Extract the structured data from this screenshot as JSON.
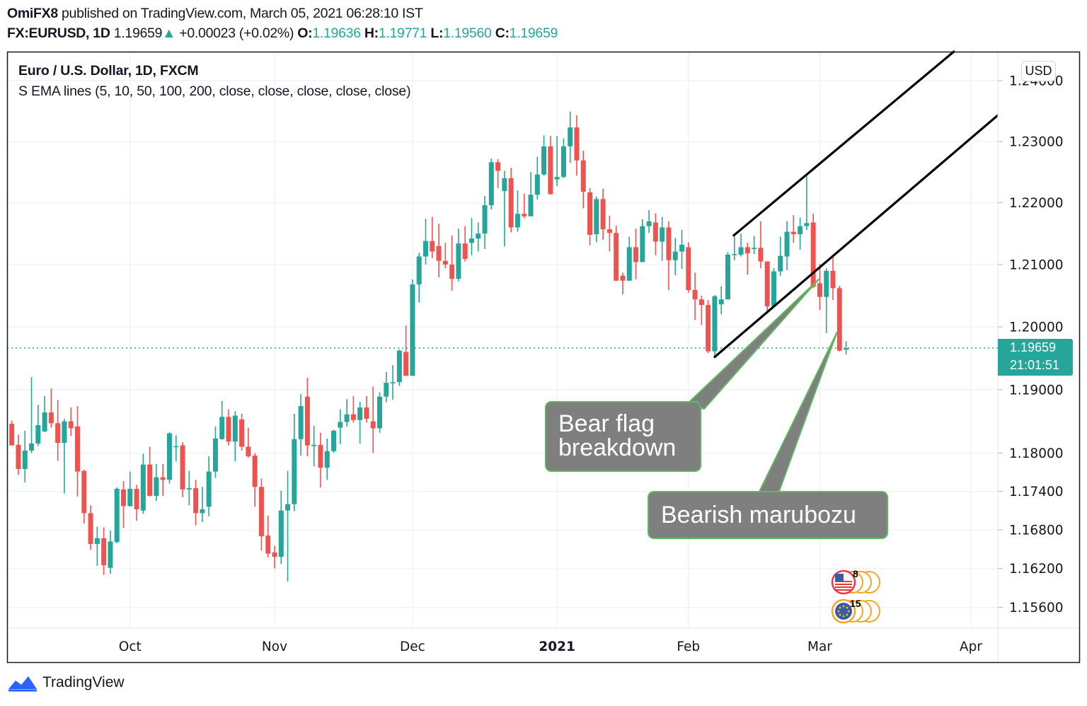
{
  "header": {
    "publisher": "OmiFX8",
    "published_text": "published on TradingView.com, March 05, 2021 06:28:10 IST",
    "symbol": "FX:EURUSD, 1D",
    "last": "1.19659",
    "change": "+0.00023 (+0.02%)",
    "o_label": "O:",
    "o": "1.19636",
    "h_label": "H:",
    "h": "1.19771",
    "l_label": "L:",
    "l": "1.19560",
    "c_label": "C:",
    "c": "1.19659"
  },
  "legend": {
    "title": "Euro / U.S. Dollar, 1D, FXCM",
    "indicator": "S EMA lines (5, 10, 50, 100, 200, close, close, close, close, close)"
  },
  "currency_button": "USD",
  "footer": {
    "brand": "TradingView"
  },
  "chart_data": {
    "type": "candlestick",
    "title": "Euro / U.S. Dollar, 1D, FXCM",
    "y_scale": "log",
    "ylim": [
      1.1528,
      1.2448
    ],
    "xlim": [
      -0.72,
      150.1
    ],
    "y_ticks": [
      1.24,
      1.23,
      1.22,
      1.21,
      1.2,
      1.19,
      1.18,
      1.174,
      1.168,
      1.162,
      1.156
    ],
    "y_tick_labels": [
      "1.24000",
      "1.23000",
      "1.22000",
      "1.21000",
      "1.20000",
      "1.19000",
      "1.18000",
      "1.17400",
      "1.16800",
      "1.16200",
      "1.15600"
    ],
    "x_ticks": [
      {
        "label": "Oct",
        "bar": 18,
        "bold": false
      },
      {
        "label": "Nov",
        "bar": 40,
        "bold": false
      },
      {
        "label": "Dec",
        "bar": 61,
        "bold": false
      },
      {
        "label": "2021",
        "bar": 83,
        "bold": true
      },
      {
        "label": "Feb",
        "bar": 103,
        "bold": false
      },
      {
        "label": "Mar",
        "bar": 123,
        "bold": false
      },
      {
        "label": "Apr",
        "bar": 146,
        "bold": false
      }
    ],
    "candles_format": [
      "open",
      "high",
      "low",
      "close"
    ],
    "candles": [
      [
        1.1846,
        1.1851,
        1.1812,
        1.1812
      ],
      [
        1.1813,
        1.1829,
        1.1766,
        1.1775
      ],
      [
        1.1775,
        1.1835,
        1.1754,
        1.1804
      ],
      [
        1.1804,
        1.192,
        1.18,
        1.1815
      ],
      [
        1.1815,
        1.1876,
        1.1811,
        1.1844
      ],
      [
        1.1834,
        1.189,
        1.1833,
        1.1864
      ],
      [
        1.1864,
        1.1902,
        1.184,
        1.1847
      ],
      [
        1.1847,
        1.1884,
        1.1788,
        1.1816
      ],
      [
        1.1816,
        1.1854,
        1.1737,
        1.185
      ],
      [
        1.185,
        1.1872,
        1.1827,
        1.1839
      ],
      [
        1.1842,
        1.1874,
        1.1732,
        1.1771
      ],
      [
        1.1772,
        1.1774,
        1.169,
        1.1706
      ],
      [
        1.1706,
        1.1718,
        1.1649,
        1.1658
      ],
      [
        1.1658,
        1.1685,
        1.1624,
        1.1667
      ],
      [
        1.1667,
        1.1684,
        1.161,
        1.1625
      ],
      [
        1.1621,
        1.1679,
        1.1612,
        1.1662
      ],
      [
        1.1661,
        1.1746,
        1.1659,
        1.1744
      ],
      [
        1.1743,
        1.1756,
        1.1683,
        1.1717
      ],
      [
        1.1717,
        1.1771,
        1.1716,
        1.1744
      ],
      [
        1.1744,
        1.175,
        1.1694,
        1.1712
      ],
      [
        1.171,
        1.1799,
        1.1705,
        1.1782
      ],
      [
        1.1782,
        1.181,
        1.1732,
        1.1733
      ],
      [
        1.1733,
        1.1783,
        1.1725,
        1.1762
      ],
      [
        1.1762,
        1.1783,
        1.1733,
        1.1758
      ],
      [
        1.1758,
        1.1833,
        1.1752,
        1.1831
      ],
      [
        1.181,
        1.1828,
        1.1787,
        1.1811
      ],
      [
        1.1812,
        1.1817,
        1.1731,
        1.1743
      ],
      [
        1.1743,
        1.1772,
        1.1718,
        1.1745
      ],
      [
        1.1745,
        1.1758,
        1.1687,
        1.1706
      ],
      [
        1.1706,
        1.1747,
        1.1692,
        1.1712
      ],
      [
        1.1716,
        1.1795,
        1.1701,
        1.1771
      ],
      [
        1.1771,
        1.1842,
        1.1761,
        1.1823
      ],
      [
        1.1822,
        1.1882,
        1.1821,
        1.1857
      ],
      [
        1.1857,
        1.1869,
        1.1812,
        1.1818
      ],
      [
        1.1818,
        1.1866,
        1.1787,
        1.1859
      ],
      [
        1.1853,
        1.1862,
        1.1804,
        1.181
      ],
      [
        1.181,
        1.184,
        1.1793,
        1.1795
      ],
      [
        1.1796,
        1.18,
        1.1716,
        1.1747
      ],
      [
        1.1747,
        1.176,
        1.1648,
        1.167
      ],
      [
        1.1671,
        1.1702,
        1.1637,
        1.1643
      ],
      [
        1.1645,
        1.1655,
        1.162,
        1.1638
      ],
      [
        1.1638,
        1.1741,
        1.1627,
        1.171
      ],
      [
        1.171,
        1.1772,
        1.16,
        1.172
      ],
      [
        1.172,
        1.1862,
        1.1709,
        1.1822
      ],
      [
        1.1822,
        1.1893,
        1.1796,
        1.1874
      ],
      [
        1.1889,
        1.1919,
        1.1795,
        1.1812
      ],
      [
        1.1811,
        1.1843,
        1.1779,
        1.1813
      ],
      [
        1.1813,
        1.1832,
        1.1746,
        1.1777
      ],
      [
        1.1777,
        1.1823,
        1.1758,
        1.1803
      ],
      [
        1.1803,
        1.1837,
        1.18,
        1.1835
      ],
      [
        1.184,
        1.1869,
        1.1814,
        1.1849
      ],
      [
        1.1849,
        1.1885,
        1.1842,
        1.1861
      ],
      [
        1.1861,
        1.189,
        1.1848,
        1.1852
      ],
      [
        1.1852,
        1.1881,
        1.1815,
        1.1872
      ],
      [
        1.1872,
        1.189,
        1.1848,
        1.1854
      ],
      [
        1.185,
        1.1905,
        1.18,
        1.1839
      ],
      [
        1.1839,
        1.1896,
        1.1832,
        1.1889
      ],
      [
        1.1889,
        1.1928,
        1.188,
        1.1911
      ],
      [
        1.1911,
        1.1939,
        1.1884,
        1.1912
      ],
      [
        1.1912,
        1.1964,
        1.1906,
        1.1962
      ],
      [
        1.196,
        1.2002,
        1.1922,
        1.1922
      ],
      [
        1.1922,
        1.2076,
        1.1922,
        1.2068
      ],
      [
        1.2068,
        1.2119,
        1.2039,
        1.2113
      ],
      [
        1.2113,
        1.2174,
        1.21,
        1.2138
      ],
      [
        1.2138,
        1.2177,
        1.211,
        1.2121
      ],
      [
        1.213,
        1.2166,
        1.2079,
        1.2106
      ],
      [
        1.2106,
        1.2135,
        1.2094,
        1.21
      ],
      [
        1.21,
        1.2147,
        1.2058,
        1.2077
      ],
      [
        1.2077,
        1.2158,
        1.2073,
        1.2134
      ],
      [
        1.2134,
        1.2162,
        1.2105,
        1.2109
      ],
      [
        1.2135,
        1.2175,
        1.2115,
        1.2142
      ],
      [
        1.2142,
        1.2168,
        1.2121,
        1.215
      ],
      [
        1.215,
        1.2211,
        1.2125,
        1.2196
      ],
      [
        1.2196,
        1.2272,
        1.2189,
        1.2266
      ],
      [
        1.2266,
        1.2271,
        1.2224,
        1.2252
      ],
      [
        1.2219,
        1.2252,
        1.2129,
        1.224
      ],
      [
        1.224,
        1.2257,
        1.2152,
        1.216
      ],
      [
        1.216,
        1.222,
        1.2153,
        1.2182
      ],
      [
        1.2182,
        1.2215,
        1.2175,
        1.2178
      ],
      [
        1.2178,
        1.225,
        1.2178,
        1.2213
      ],
      [
        1.2213,
        1.2275,
        1.2205,
        1.2246
      ],
      [
        1.2246,
        1.231,
        1.2244,
        1.2292
      ],
      [
        1.2292,
        1.2309,
        1.2213,
        1.2214
      ],
      [
        1.2238,
        1.2309,
        1.2227,
        1.2242
      ],
      [
        1.2242,
        1.2305,
        1.224,
        1.2292
      ],
      [
        1.2292,
        1.2349,
        1.2265,
        1.2323
      ],
      [
        1.2323,
        1.2343,
        1.2244,
        1.2269
      ],
      [
        1.2269,
        1.2285,
        1.2191,
        1.2218
      ],
      [
        1.2217,
        1.2224,
        1.2131,
        1.2148
      ],
      [
        1.2149,
        1.221,
        1.2136,
        1.2206
      ],
      [
        1.2206,
        1.2223,
        1.214,
        1.2157
      ],
      [
        1.2157,
        1.2179,
        1.2121,
        1.2151
      ],
      [
        1.2151,
        1.2163,
        1.2074,
        1.2074
      ],
      [
        1.2082,
        1.2087,
        1.2052,
        1.2074
      ],
      [
        1.2074,
        1.2145,
        1.2074,
        1.2128
      ],
      [
        1.2128,
        1.2158,
        1.2076,
        1.2104
      ],
      [
        1.2104,
        1.2173,
        1.2104,
        1.2162
      ],
      [
        1.2162,
        1.2188,
        1.2151,
        1.217
      ],
      [
        1.2168,
        1.2183,
        1.2115,
        1.2137
      ],
      [
        1.2137,
        1.2177,
        1.2106,
        1.216
      ],
      [
        1.216,
        1.217,
        1.2059,
        1.2107
      ],
      [
        1.2107,
        1.2143,
        1.2083,
        1.2121
      ],
      [
        1.2121,
        1.2156,
        1.2093,
        1.2132
      ],
      [
        1.2128,
        1.2136,
        1.2055,
        1.2059
      ],
      [
        1.2059,
        1.2087,
        1.2011,
        1.2044
      ],
      [
        1.2044,
        1.205,
        1.2003,
        1.2035
      ],
      [
        1.2035,
        1.2043,
        1.1958,
        1.1961
      ],
      [
        1.1961,
        1.2051,
        1.1952,
        1.2049
      ],
      [
        1.2036,
        1.2065,
        1.202,
        1.2044
      ],
      [
        1.2044,
        1.212,
        1.2044,
        1.2116
      ],
      [
        1.2116,
        1.2145,
        1.2107,
        1.2117
      ],
      [
        1.2116,
        1.215,
        1.2113,
        1.2128
      ],
      [
        1.2128,
        1.2135,
        1.2084,
        1.2118
      ],
      [
        1.2125,
        1.2146,
        1.2117,
        1.2127
      ],
      [
        1.2127,
        1.217,
        1.2094,
        1.2105
      ],
      [
        1.2105,
        1.2105,
        1.2022,
        1.2033
      ],
      [
        1.2033,
        1.2094,
        1.2033,
        1.2089
      ],
      [
        1.2089,
        1.2145,
        1.2082,
        1.2114
      ],
      [
        1.2113,
        1.217,
        1.2091,
        1.2153
      ],
      [
        1.2153,
        1.218,
        1.2135,
        1.2149
      ],
      [
        1.2149,
        1.2176,
        1.2124,
        1.2162
      ],
      [
        1.2162,
        1.2243,
        1.2156,
        1.2167
      ],
      [
        1.2168,
        1.2182,
        1.2062,
        1.2064
      ],
      [
        1.207,
        1.2101,
        1.2027,
        1.2048
      ],
      [
        1.2048,
        1.2094,
        1.199,
        1.209
      ],
      [
        1.209,
        1.2113,
        1.2043,
        1.2062
      ],
      [
        1.2062,
        1.2066,
        1.1961,
        1.1962
      ],
      [
        1.19636,
        1.19771,
        1.1956,
        1.19659
      ]
    ],
    "last_price": {
      "value": 1.19659,
      "label": "1.19659",
      "countdown": "21:01:51"
    },
    "trendlines": [
      {
        "name": "flag-upper",
        "start": [
          109.9,
          1.2147
        ],
        "end": [
          143.4,
          1.2448
        ]
      },
      {
        "name": "flag-lower",
        "start": [
          107.0,
          1.1952
        ],
        "end": [
          150.1,
          1.2343
        ]
      }
    ],
    "annotations": [
      {
        "text_lines": [
          "Bear flag",
          "breakdown"
        ],
        "target": [
          122.8,
          1.2076
        ]
      },
      {
        "text_lines": [
          "Bearish marubozu"
        ],
        "target": [
          125.6,
          1.1991
        ]
      }
    ],
    "events": [
      {
        "country": "US",
        "label": "8"
      },
      {
        "country": "EU",
        "label": "15"
      }
    ],
    "colors": {
      "up": "#26a69a",
      "down": "#ef5350",
      "grid": "#f0f3fa",
      "trendline": "#000000",
      "callout_fill": "#7f7f7f",
      "callout_border": "#5cb85c"
    }
  }
}
